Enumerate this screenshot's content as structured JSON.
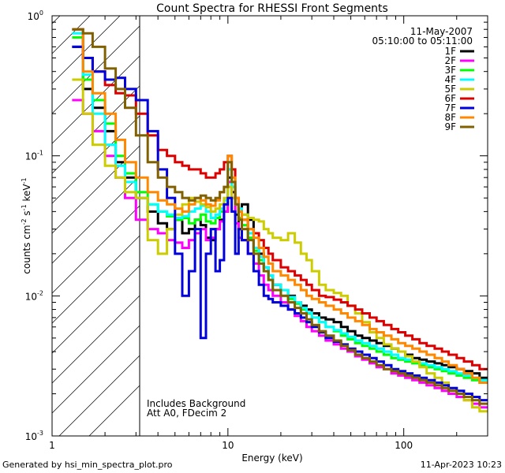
{
  "footer": {
    "generated_by": "Generated by hsi_min_spectra_plot.pro",
    "generated_date": "11-Apr-2023 10:23"
  },
  "chart_data": {
    "type": "line",
    "title": "Count Spectra for RHESSI Front Segments",
    "xlabel": "Energy (keV)",
    "ylabel_parts": [
      "counts cm",
      "-2",
      " s",
      "-1",
      " keV",
      "-1"
    ],
    "x_scale": "log",
    "y_scale": "log",
    "xlim": [
      1,
      300
    ],
    "ylim": [
      0.001,
      1
    ],
    "x_ticks": [
      {
        "value": 1,
        "label": "1"
      },
      {
        "value": 10,
        "label": "10"
      },
      {
        "value": 100,
        "label": "100"
      }
    ],
    "y_ticks": [
      {
        "value": 1,
        "label": "10",
        "exp": "0"
      },
      {
        "value": 0.1,
        "label": "10",
        "exp": "-1"
      },
      {
        "value": 0.01,
        "label": "10",
        "exp": "-2"
      },
      {
        "value": 0.001,
        "label": "10",
        "exp": "-3"
      }
    ],
    "date": "11-May-2007",
    "time_range": "05:10:00 to 05:11:00",
    "annotations": [
      "Includes Background",
      "Att A0, FDecim 2"
    ],
    "hatched_region_below_kev": 3,
    "bin_edges": [
      1.3,
      1.5,
      1.7,
      2.0,
      2.3,
      2.6,
      3.0,
      3.5,
      4.0,
      4.5,
      5.0,
      5.5,
      6.0,
      6.5,
      7.0,
      7.5,
      8.0,
      8.5,
      9.0,
      9.5,
      10.0,
      10.5,
      11.0,
      11.5,
      12.0,
      13.0,
      14.0,
      15.0,
      16.0,
      17.0,
      18.0,
      20.0,
      22.0,
      24.0,
      26.0,
      28.0,
      30.0,
      33.0,
      36.0,
      40.0,
      44.0,
      48.0,
      53.0,
      58.0,
      64.0,
      70.0,
      77.0,
      85.0,
      93.0,
      102.0,
      112.0,
      123.0,
      135.0,
      150.0,
      165.0,
      180.0,
      200.0,
      220.0,
      245.0,
      270.0,
      300.0
    ],
    "series": [
      {
        "name": "1F",
        "color": "#000000",
        "values": [
          0.6,
          0.3,
          0.22,
          0.15,
          0.09,
          0.07,
          0.05,
          0.04,
          0.033,
          0.03,
          0.035,
          0.028,
          0.03,
          0.035,
          0.032,
          0.026,
          0.025,
          0.03,
          0.035,
          0.04,
          0.07,
          0.055,
          0.038,
          0.03,
          0.045,
          0.035,
          0.022,
          0.02,
          0.016,
          0.014,
          0.012,
          0.011,
          0.01,
          0.009,
          0.0085,
          0.008,
          0.0075,
          0.007,
          0.0068,
          0.0065,
          0.006,
          0.0056,
          0.0052,
          0.005,
          0.0048,
          0.0046,
          0.0044,
          0.0042,
          0.004,
          0.0038,
          0.0036,
          0.0035,
          0.0034,
          0.0033,
          0.0032,
          0.0031,
          0.003,
          0.0029,
          0.0028,
          0.0026
        ]
      },
      {
        "name": "2F",
        "color": "#ff00ff",
        "values": [
          0.25,
          0.2,
          0.15,
          0.1,
          0.07,
          0.05,
          0.035,
          0.03,
          0.028,
          0.025,
          0.024,
          0.022,
          0.025,
          0.028,
          0.03,
          0.025,
          0.026,
          0.03,
          0.034,
          0.04,
          0.065,
          0.05,
          0.033,
          0.026,
          0.025,
          0.02,
          0.017,
          0.014,
          0.012,
          0.011,
          0.01,
          0.009,
          0.008,
          0.0072,
          0.0066,
          0.006,
          0.0056,
          0.0052,
          0.0048,
          0.0045,
          0.0042,
          0.004,
          0.0037,
          0.0035,
          0.0033,
          0.0031,
          0.003,
          0.0028,
          0.0027,
          0.0026,
          0.0025,
          0.0024,
          0.0023,
          0.0022,
          0.0021,
          0.002,
          0.0019,
          0.0018,
          0.0017,
          0.0016
        ]
      },
      {
        "name": "3F",
        "color": "#00ff00",
        "values": [
          0.7,
          0.35,
          0.25,
          0.17,
          0.1,
          0.075,
          0.055,
          0.045,
          0.04,
          0.037,
          0.035,
          0.036,
          0.033,
          0.035,
          0.038,
          0.034,
          0.033,
          0.036,
          0.04,
          0.045,
          0.08,
          0.06,
          0.045,
          0.036,
          0.032,
          0.026,
          0.021,
          0.018,
          0.015,
          0.013,
          0.011,
          0.01,
          0.0095,
          0.0088,
          0.008,
          0.0075,
          0.007,
          0.0065,
          0.006,
          0.0056,
          0.0052,
          0.0049,
          0.0046,
          0.0044,
          0.0042,
          0.004,
          0.0038,
          0.0036,
          0.0035,
          0.0034,
          0.0033,
          0.0032,
          0.0031,
          0.003,
          0.0029,
          0.0028,
          0.0027,
          0.0026,
          0.0025,
          0.0024
        ]
      },
      {
        "name": "4F",
        "color": "#00ffff",
        "values": [
          0.75,
          0.38,
          0.2,
          0.12,
          0.085,
          0.065,
          0.05,
          0.045,
          0.04,
          0.038,
          0.036,
          0.037,
          0.04,
          0.042,
          0.044,
          0.04,
          0.036,
          0.038,
          0.042,
          0.048,
          0.08,
          0.06,
          0.045,
          0.042,
          0.038,
          0.028,
          0.022,
          0.019,
          0.016,
          0.014,
          0.012,
          0.011,
          0.0098,
          0.009,
          0.0082,
          0.0076,
          0.007,
          0.0065,
          0.006,
          0.0057,
          0.0054,
          0.0051,
          0.0048,
          0.0046,
          0.0044,
          0.0042,
          0.004,
          0.0038,
          0.0036,
          0.0035,
          0.0034,
          0.0033,
          0.0032,
          0.0031,
          0.003,
          0.0029,
          0.0028,
          0.0027,
          0.0026,
          0.0025
        ]
      },
      {
        "name": "5F",
        "color": "#cccc00",
        "values": [
          0.35,
          0.2,
          0.12,
          0.085,
          0.07,
          0.055,
          0.05,
          0.025,
          0.02,
          0.03,
          0.038,
          0.045,
          0.05,
          0.047,
          0.045,
          0.043,
          0.04,
          0.042,
          0.045,
          0.05,
          0.06,
          0.05,
          0.045,
          0.04,
          0.038,
          0.036,
          0.035,
          0.034,
          0.03,
          0.028,
          0.026,
          0.025,
          0.028,
          0.024,
          0.02,
          0.018,
          0.015,
          0.012,
          0.011,
          0.0105,
          0.01,
          0.0085,
          0.0075,
          0.0065,
          0.0055,
          0.005,
          0.0045,
          0.0042,
          0.004,
          0.0037,
          0.0034,
          0.0031,
          0.0028,
          0.0026,
          0.0024,
          0.0022,
          0.002,
          0.0018,
          0.0016,
          0.0015
        ]
      },
      {
        "name": "6F",
        "color": "#dd0000",
        "values": [
          0.8,
          0.5,
          0.4,
          0.32,
          0.28,
          0.27,
          0.2,
          0.14,
          0.11,
          0.1,
          0.09,
          0.085,
          0.08,
          0.08,
          0.075,
          0.07,
          0.07,
          0.075,
          0.08,
          0.09,
          0.1,
          0.08,
          0.05,
          0.04,
          0.035,
          0.03,
          0.028,
          0.025,
          0.022,
          0.02,
          0.018,
          0.016,
          0.015,
          0.014,
          0.013,
          0.012,
          0.011,
          0.01,
          0.0098,
          0.0094,
          0.009,
          0.0085,
          0.008,
          0.0075,
          0.007,
          0.0066,
          0.0062,
          0.0058,
          0.0055,
          0.0052,
          0.0049,
          0.0046,
          0.0044,
          0.0042,
          0.004,
          0.0038,
          0.0036,
          0.0034,
          0.0032,
          0.003
        ]
      },
      {
        "name": "7F",
        "color": "#0000dd",
        "values": [
          0.6,
          0.5,
          0.4,
          0.35,
          0.36,
          0.3,
          0.25,
          0.15,
          0.08,
          0.05,
          0.02,
          0.01,
          0.015,
          0.03,
          0.005,
          0.02,
          0.03,
          0.015,
          0.018,
          0.045,
          0.05,
          0.04,
          0.02,
          0.03,
          0.025,
          0.02,
          0.015,
          0.012,
          0.01,
          0.0095,
          0.009,
          0.0085,
          0.008,
          0.0075,
          0.007,
          0.0065,
          0.006,
          0.0055,
          0.005,
          0.0047,
          0.0045,
          0.0042,
          0.004,
          0.0038,
          0.0036,
          0.0034,
          0.0032,
          0.003,
          0.0029,
          0.0028,
          0.0027,
          0.0026,
          0.0025,
          0.0024,
          0.0023,
          0.0022,
          0.0021,
          0.002,
          0.0019,
          0.0018
        ]
      },
      {
        "name": "8F",
        "color": "#ff8800",
        "values": [
          0.8,
          0.4,
          0.28,
          0.2,
          0.13,
          0.09,
          0.07,
          0.055,
          0.048,
          0.045,
          0.042,
          0.04,
          0.045,
          0.05,
          0.048,
          0.045,
          0.044,
          0.048,
          0.055,
          0.06,
          0.1,
          0.07,
          0.05,
          0.04,
          0.035,
          0.03,
          0.026,
          0.022,
          0.019,
          0.017,
          0.015,
          0.014,
          0.013,
          0.012,
          0.011,
          0.01,
          0.0095,
          0.009,
          0.0085,
          0.008,
          0.0075,
          0.007,
          0.0066,
          0.0062,
          0.0058,
          0.0055,
          0.0052,
          0.0049,
          0.0046,
          0.0044,
          0.0042,
          0.004,
          0.0038,
          0.0036,
          0.0034,
          0.0032,
          0.003,
          0.0028,
          0.0026,
          0.0024
        ]
      },
      {
        "name": "9F",
        "color": "#806000",
        "values": [
          0.8,
          0.75,
          0.6,
          0.42,
          0.3,
          0.22,
          0.14,
          0.09,
          0.07,
          0.06,
          0.055,
          0.05,
          0.048,
          0.05,
          0.052,
          0.05,
          0.048,
          0.05,
          0.055,
          0.06,
          0.09,
          0.065,
          0.045,
          0.035,
          0.03,
          0.025,
          0.02,
          0.017,
          0.015,
          0.013,
          0.011,
          0.01,
          0.009,
          0.0082,
          0.0075,
          0.0068,
          0.0062,
          0.0056,
          0.0052,
          0.0048,
          0.0044,
          0.0041,
          0.0038,
          0.0036,
          0.0034,
          0.0032,
          0.003,
          0.0029,
          0.0028,
          0.0027,
          0.0026,
          0.0025,
          0.0024,
          0.0023,
          0.0022,
          0.0021,
          0.002,
          0.0019,
          0.0018,
          0.0017
        ]
      }
    ]
  }
}
